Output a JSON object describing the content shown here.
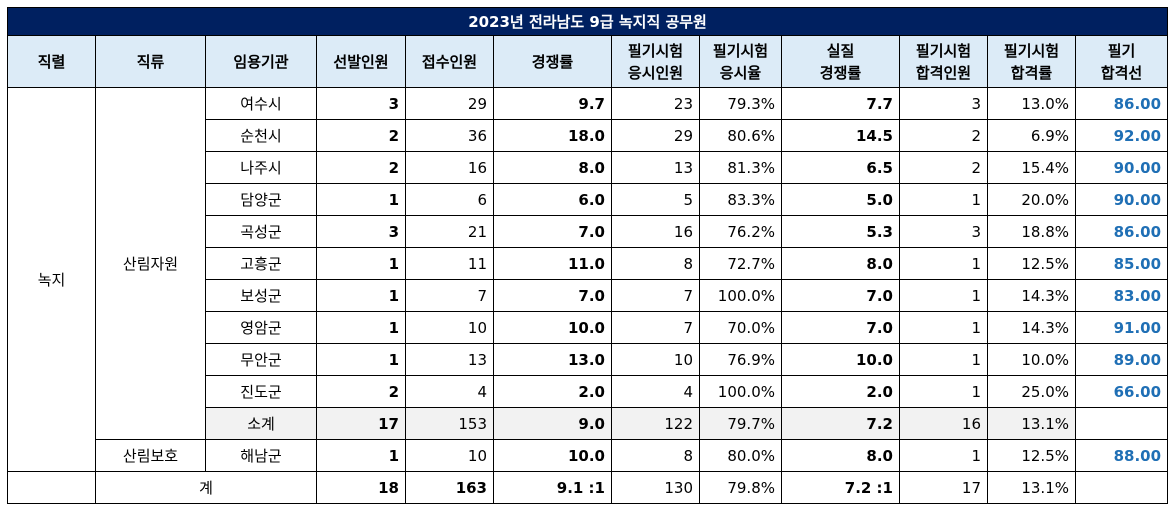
{
  "title": "2023년 전라남도 9급 녹지직 공무원",
  "headers": {
    "jikryeol": "직렬",
    "jikryu": "직류",
    "agency": "임용기관",
    "selected": "선발인원",
    "applied": "접수인원",
    "competition": "경쟁률",
    "exam_takers": "필기시험\n응시인원",
    "exam_rate": "필기시험\n응시율",
    "real_comp": "실질\n경쟁률",
    "passed": "필기시험\n합격인원",
    "pass_rate": "필기시험\n합격률",
    "cutoff": "필기\n합격선"
  },
  "group": {
    "jikryeol": "녹지",
    "jikryu_1": "산림자원",
    "jikryu_2": "산림보호"
  },
  "rows": [
    {
      "agency": "여수시",
      "selected": "3",
      "applied": "29",
      "competition": "9.7",
      "takers": "23",
      "rate": "79.3%",
      "real": "7.7",
      "passed": "3",
      "pass_rate": "13.0%",
      "cutoff": "86.00"
    },
    {
      "agency": "순천시",
      "selected": "2",
      "applied": "36",
      "competition": "18.0",
      "takers": "29",
      "rate": "80.6%",
      "real": "14.5",
      "passed": "2",
      "pass_rate": "6.9%",
      "cutoff": "92.00"
    },
    {
      "agency": "나주시",
      "selected": "2",
      "applied": "16",
      "competition": "8.0",
      "takers": "13",
      "rate": "81.3%",
      "real": "6.5",
      "passed": "2",
      "pass_rate": "15.4%",
      "cutoff": "90.00"
    },
    {
      "agency": "담양군",
      "selected": "1",
      "applied": "6",
      "competition": "6.0",
      "takers": "5",
      "rate": "83.3%",
      "real": "5.0",
      "passed": "1",
      "pass_rate": "20.0%",
      "cutoff": "90.00"
    },
    {
      "agency": "곡성군",
      "selected": "3",
      "applied": "21",
      "competition": "7.0",
      "takers": "16",
      "rate": "76.2%",
      "real": "5.3",
      "passed": "3",
      "pass_rate": "18.8%",
      "cutoff": "86.00"
    },
    {
      "agency": "고흥군",
      "selected": "1",
      "applied": "11",
      "competition": "11.0",
      "takers": "8",
      "rate": "72.7%",
      "real": "8.0",
      "passed": "1",
      "pass_rate": "12.5%",
      "cutoff": "85.00"
    },
    {
      "agency": "보성군",
      "selected": "1",
      "applied": "7",
      "competition": "7.0",
      "takers": "7",
      "rate": "100.0%",
      "real": "7.0",
      "passed": "1",
      "pass_rate": "14.3%",
      "cutoff": "83.00"
    },
    {
      "agency": "영암군",
      "selected": "1",
      "applied": "10",
      "competition": "10.0",
      "takers": "7",
      "rate": "70.0%",
      "real": "7.0",
      "passed": "1",
      "pass_rate": "14.3%",
      "cutoff": "91.00"
    },
    {
      "agency": "무안군",
      "selected": "1",
      "applied": "13",
      "competition": "13.0",
      "takers": "10",
      "rate": "76.9%",
      "real": "10.0",
      "passed": "1",
      "pass_rate": "10.0%",
      "cutoff": "89.00"
    },
    {
      "agency": "진도군",
      "selected": "2",
      "applied": "4",
      "competition": "2.0",
      "takers": "4",
      "rate": "100.0%",
      "real": "2.0",
      "passed": "1",
      "pass_rate": "25.0%",
      "cutoff": "66.00"
    }
  ],
  "subtotal": {
    "agency": "소계",
    "selected": "17",
    "applied": "153",
    "competition": "9.0",
    "takers": "122",
    "rate": "79.7%",
    "real": "7.2",
    "passed": "16",
    "pass_rate": "13.1%",
    "cutoff": ""
  },
  "protect_row": {
    "agency": "해남군",
    "selected": "1",
    "applied": "10",
    "competition": "10.0",
    "takers": "8",
    "rate": "80.0%",
    "real": "8.0",
    "passed": "1",
    "pass_rate": "12.5%",
    "cutoff": "88.00"
  },
  "total": {
    "label": "계",
    "selected": "18",
    "applied": "163",
    "competition": "9.1 :1",
    "takers": "130",
    "rate": "79.8%",
    "real": "7.2 :1",
    "passed": "17",
    "pass_rate": "13.1%",
    "cutoff": ""
  },
  "colors": {
    "title_bg": "#002060",
    "header_bg": "#dcebf7",
    "cutoff_text": "#1f6fb5",
    "subtotal_bg": "#f2f2f2"
  }
}
